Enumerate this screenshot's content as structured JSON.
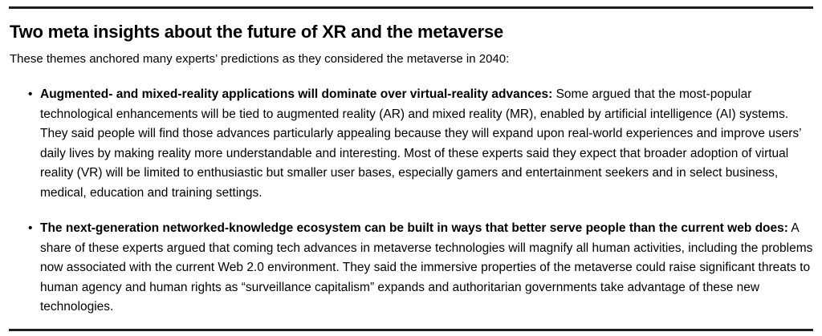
{
  "figure": {
    "title": "Two meta insights about the future of XR and the metaverse",
    "intro": "These themes anchored many experts’ predictions as they considered the metaverse in 2040:",
    "bullet_char": "•",
    "bullets": [
      {
        "lead": "Augmented- and mixed-reality applications will dominate over virtual-reality advances:",
        "body": " Some argued that the most-popular technological enhancements will be tied to augmented reality (AR) and mixed reality (MR), enabled by artificial intelligence (AI) systems. They said people will find those advances particularly appealing because they will expand upon real-world experiences and improve users’ daily lives by making reality more understandable and interesting. Most of these experts said they expect that broader adoption of virtual reality (VR) will be limited to enthusiastic but smaller user bases, especially gamers and entertainment seekers and in select business, medical, education and training settings."
      },
      {
        "lead": "The next-generation networked-knowledge ecosystem can be built in ways that better serve people than the current web does:",
        "body": " A share of these experts argued that coming tech advances in metaverse technologies will magnify all human activities, including the problems now associated with the current Web 2.0 environment. They said the immersive properties of the metaverse could raise significant threats to human agency and human rights as “surveillance capitalism” expands and authoritarian governments take advantage of these new technologies."
      }
    ]
  },
  "colors": {
    "text": "#000000",
    "rule": "#1f1f1f",
    "background": "#ffffff"
  }
}
